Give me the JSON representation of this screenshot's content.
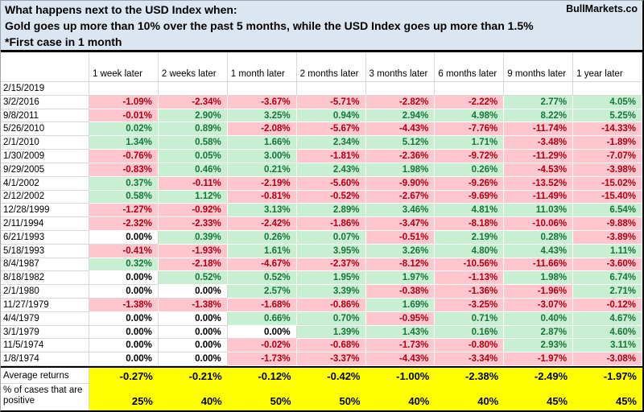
{
  "title": {
    "line1": "What happens next to the USD Index when:",
    "line2": "Gold goes up more than 10% over the past 5 months, while the USD Index goes up more than 1.5%",
    "line3": "*First case in 1 month",
    "brand": "BullMarkets.co"
  },
  "chart_data": {
    "type": "table",
    "title": "What happens next to the USD Index when: Gold goes up more than 10% over the past 5 months, while the USD Index goes up more than 1.5% (*First case in 1 month)",
    "columns": [
      "1 week later",
      "2 weeks later",
      "1 month later",
      "2 months later",
      "3 months later",
      "6 months later",
      "9 months later",
      "1 year later"
    ],
    "rows": [
      {
        "date": "2/15/2019",
        "values": [
          "",
          "",
          "",
          "",
          "",
          "",
          "",
          ""
        ]
      },
      {
        "date": "3/2/2016",
        "values": [
          "-1.09%",
          "-2.34%",
          "-3.67%",
          "-5.71%",
          "-2.82%",
          "-2.22%",
          "2.77%",
          "4.05%"
        ]
      },
      {
        "date": "9/8/2011",
        "values": [
          "-0.01%",
          "2.90%",
          "3.25%",
          "0.94%",
          "2.94%",
          "4.98%",
          "8.22%",
          "5.25%"
        ]
      },
      {
        "date": "5/26/2010",
        "values": [
          "0.02%",
          "0.89%",
          "-2.08%",
          "-5.67%",
          "-4.43%",
          "-7.76%",
          "-11.74%",
          "-14.33%"
        ]
      },
      {
        "date": "2/1/2010",
        "values": [
          "1.34%",
          "0.58%",
          "1.66%",
          "2.34%",
          "5.12%",
          "1.71%",
          "-3.48%",
          "-1.89%"
        ]
      },
      {
        "date": "1/30/2009",
        "values": [
          "-0.76%",
          "0.05%",
          "3.00%",
          "-1.81%",
          "-2.36%",
          "-9.72%",
          "-11.29%",
          "-7.07%"
        ]
      },
      {
        "date": "9/29/2005",
        "values": [
          "-0.83%",
          "0.46%",
          "0.21%",
          "2.43%",
          "1.98%",
          "0.26%",
          "-4.53%",
          "-3.98%"
        ]
      },
      {
        "date": "4/1/2002",
        "values": [
          "0.37%",
          "-0.11%",
          "-2.19%",
          "-5.60%",
          "-9.90%",
          "-9.26%",
          "-13.52%",
          "-15.02%"
        ]
      },
      {
        "date": "2/12/2002",
        "values": [
          "0.58%",
          "1.12%",
          "-0.81%",
          "-0.52%",
          "-2.67%",
          "-9.69%",
          "-11.49%",
          "-15.40%"
        ]
      },
      {
        "date": "12/28/1999",
        "values": [
          "-1.27%",
          "-0.92%",
          "3.13%",
          "2.89%",
          "3.46%",
          "4.81%",
          "11.03%",
          "6.54%"
        ]
      },
      {
        "date": "2/11/1994",
        "values": [
          "-2.32%",
          "-2.33%",
          "-2.42%",
          "-1.86%",
          "-3.47%",
          "-8.18%",
          "-10.06%",
          "-9.88%"
        ]
      },
      {
        "date": "6/21/1993",
        "values": [
          "0.00%",
          "0.39%",
          "0.26%",
          "0.07%",
          "-0.51%",
          "2.19%",
          "0.28%",
          "-3.89%"
        ]
      },
      {
        "date": "5/18/1993",
        "values": [
          "-0.41%",
          "-1.93%",
          "1.61%",
          "3.95%",
          "3.26%",
          "4.80%",
          "4.43%",
          "1.11%"
        ]
      },
      {
        "date": "8/4/1987",
        "values": [
          "0.32%",
          "-2.18%",
          "-4.67%",
          "-2.37%",
          "-8.12%",
          "-10.56%",
          "-11.66%",
          "-3.60%"
        ]
      },
      {
        "date": "8/18/1982",
        "values": [
          "0.00%",
          "0.52%",
          "0.52%",
          "1.95%",
          "1.97%",
          "-1.13%",
          "1.98%",
          "6.74%"
        ]
      },
      {
        "date": "2/1/1980",
        "values": [
          "0.00%",
          "0.00%",
          "2.57%",
          "3.39%",
          "-0.38%",
          "-1.36%",
          "-1.96%",
          "2.71%"
        ]
      },
      {
        "date": "11/27/1979",
        "values": [
          "-1.38%",
          "-1.38%",
          "-1.68%",
          "-0.86%",
          "1.69%",
          "-3.25%",
          "-3.07%",
          "-0.12%"
        ]
      },
      {
        "date": "4/4/1979",
        "values": [
          "0.00%",
          "0.00%",
          "0.66%",
          "0.70%",
          "-0.95%",
          "0.71%",
          "0.40%",
          "4.67%"
        ]
      },
      {
        "date": "3/1/1979",
        "values": [
          "0.00%",
          "0.00%",
          "0.00%",
          "1.39%",
          "1.43%",
          "0.16%",
          "2.87%",
          "4.60%"
        ]
      },
      {
        "date": "11/5/1974",
        "values": [
          "0.00%",
          "0.00%",
          "-0.02%",
          "-0.68%",
          "-1.73%",
          "-0.80%",
          "2.93%",
          "3.11%"
        ]
      },
      {
        "date": "1/8/1974",
        "values": [
          "0.00%",
          "0.00%",
          "-1.73%",
          "-3.37%",
          "-4.43%",
          "-3.34%",
          "-1.97%",
          "-3.08%"
        ]
      }
    ],
    "summary": {
      "avg_label": "Average returns",
      "avg_values": [
        "-0.27%",
        "-0.21%",
        "-0.12%",
        "-0.42%",
        "-1.00%",
        "-2.38%",
        "-2.49%",
        "-1.97%"
      ],
      "pct_label": "% of cases that are positive",
      "pct_values": [
        "25%",
        "40%",
        "50%",
        "50%",
        "40%",
        "40%",
        "45%",
        "45%"
      ]
    }
  },
  "colors": {
    "header_bg": "#DCE6F1",
    "positive_bg": "#C8EFD1",
    "positive_text": "#17763A",
    "negative_bg": "#FFC6CE",
    "negative_text": "#B00013",
    "summary_bg": "#FFFF00",
    "grid_line": "#D8D8D8"
  }
}
